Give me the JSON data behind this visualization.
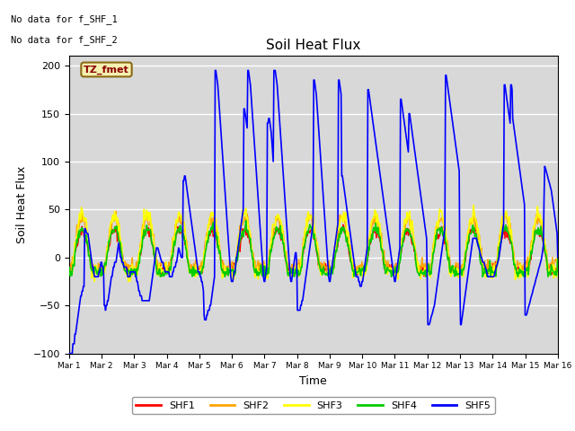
{
  "title": "Soil Heat Flux",
  "ylabel": "Soil Heat Flux",
  "xlabel": "Time",
  "ylim": [
    -100,
    210
  ],
  "xlim": [
    0,
    15
  ],
  "note1": "No data for f_SHF_1",
  "note2": "No data for f_SHF_2",
  "box_label": "TZ_fmet",
  "legend_entries": [
    "SHF1",
    "SHF2",
    "SHF3",
    "SHF4",
    "SHF5"
  ],
  "colors": {
    "SHF1": "#ff0000",
    "SHF2": "#ffa500",
    "SHF3": "#ffff00",
    "SHF4": "#00cc00",
    "SHF5": "#0000ff"
  },
  "plot_bg": "#d8d8d8",
  "fig_bg": "#ffffff",
  "xtick_labels": [
    "Mar 1",
    "Mar 2",
    "Mar 3",
    "Mar 4",
    "Mar 5",
    "Mar 6",
    "Mar 7",
    "Mar 8",
    "Mar 9",
    "Mar 10",
    "Mar 11",
    "Mar 12",
    "Mar 13",
    "Mar 14",
    "Mar 15",
    "Mar 16"
  ],
  "shf5_segments": [
    [
      -100,
      -100,
      -100,
      -100,
      -100,
      -100,
      -90,
      -90,
      -90,
      -80,
      -80,
      -75,
      -70,
      -65,
      -60,
      -55,
      -50,
      -45,
      -40,
      -40,
      -35,
      -35,
      -30,
      -30,
      30,
      30,
      28,
      25,
      25,
      25,
      20,
      15,
      10,
      5,
      0,
      -5,
      -10,
      -10,
      -15,
      -20,
      -20,
      -20,
      -20,
      -20,
      -20,
      -20,
      -15,
      -15,
      -10,
      -5
    ],
    [
      -5,
      -10,
      -10,
      -15,
      -50,
      -50,
      -55,
      -50,
      -50,
      -45,
      -45,
      -40,
      -35,
      -30,
      -25,
      -20,
      -20,
      -15,
      -10,
      -10,
      -5,
      -5,
      -5,
      0,
      5,
      10,
      15,
      10,
      5,
      0,
      0,
      -5,
      -5,
      -5,
      -10,
      -10,
      -10,
      -10,
      -10,
      -15,
      -20,
      -20,
      -20,
      -20,
      -15,
      -15,
      -15,
      -15,
      -15,
      -15
    ],
    [
      -15,
      -15,
      -20,
      -20,
      -25,
      -25,
      -30,
      -35,
      -35,
      -40,
      -40,
      -40,
      -45,
      -45,
      -45,
      -45,
      -45,
      -45,
      -45,
      -45,
      -45,
      -45,
      -45,
      -45,
      -40,
      -35,
      -30,
      -25,
      -20,
      -15,
      -10,
      -5,
      0,
      5,
      10,
      10,
      10,
      8,
      5,
      3,
      0,
      -2,
      -5,
      -5,
      -5,
      -10,
      -10,
      -15,
      -15,
      -15
    ],
    [
      -15,
      -15,
      -15,
      -15,
      -20,
      -20,
      -20,
      -20,
      -20,
      -15,
      -15,
      -10,
      -10,
      -10,
      -5,
      -5,
      0,
      5,
      10,
      8,
      5,
      3,
      0,
      0,
      0,
      80,
      80,
      85,
      85,
      80,
      75,
      70,
      65,
      60,
      55,
      50,
      45,
      40,
      35,
      30,
      25,
      20,
      15,
      10,
      5,
      0,
      -5,
      -10,
      -15,
      -15
    ],
    [
      -15,
      -20,
      -20,
      -25,
      -25,
      -30,
      -35,
      -60,
      -65,
      -65,
      -65,
      -60,
      -60,
      -55,
      -55,
      -55,
      -50,
      -50,
      -45,
      -40,
      -35,
      -30,
      -25,
      -20,
      195,
      195,
      190,
      185,
      180,
      170,
      160,
      150,
      140,
      130,
      120,
      110,
      100,
      90,
      80,
      70,
      60,
      50,
      40,
      30,
      20,
      10,
      0,
      -10,
      -20,
      -25
    ],
    [
      -25,
      -25,
      -20,
      -15,
      -15,
      -10,
      -5,
      0,
      5,
      10,
      15,
      20,
      25,
      30,
      35,
      40,
      45,
      50,
      155,
      155,
      150,
      145,
      140,
      135,
      195,
      195,
      190,
      185,
      180,
      170,
      160,
      150,
      140,
      130,
      120,
      110,
      100,
      90,
      80,
      70,
      60,
      50,
      40,
      30,
      20,
      10,
      0,
      -10,
      -20,
      -25
    ],
    [
      -25,
      -20,
      -15,
      -10,
      140,
      140,
      145,
      145,
      140,
      135,
      130,
      120,
      110,
      100,
      195,
      195,
      195,
      190,
      185,
      180,
      170,
      160,
      150,
      140,
      130,
      120,
      110,
      100,
      90,
      80,
      70,
      60,
      50,
      40,
      30,
      20,
      10,
      0,
      -10,
      -20,
      -25,
      -25,
      -20,
      -15,
      -10,
      -5,
      0,
      5,
      5,
      -5
    ],
    [
      -55,
      -55,
      -55,
      -55,
      -55,
      -50,
      -50,
      -45,
      -45,
      -40,
      -35,
      -30,
      -25,
      -20,
      -15,
      -10,
      -5,
      0,
      5,
      10,
      15,
      20,
      25,
      30,
      35,
      185,
      185,
      180,
      175,
      170,
      160,
      150,
      140,
      130,
      120,
      110,
      100,
      90,
      80,
      70,
      60,
      50,
      40,
      30,
      20,
      10,
      0,
      -10,
      -20,
      -25
    ],
    [
      -25,
      -20,
      -15,
      -10,
      -5,
      0,
      5,
      10,
      15,
      20,
      25,
      30,
      35,
      185,
      185,
      180,
      175,
      170,
      85,
      85,
      80,
      75,
      70,
      65,
      60,
      55,
      50,
      45,
      40,
      35,
      30,
      25,
      20,
      15,
      10,
      5,
      0,
      -5,
      -10,
      -15,
      -20,
      -20,
      -20,
      -20,
      -25,
      -25,
      -30,
      -30,
      -30,
      -25
    ],
    [
      -25,
      -20,
      -15,
      -10,
      -5,
      0,
      5,
      10,
      175,
      175,
      170,
      165,
      160,
      155,
      150,
      145,
      140,
      135,
      130,
      125,
      120,
      115,
      110,
      105,
      100,
      95,
      90,
      85,
      80,
      75,
      70,
      65,
      60,
      55,
      50,
      45,
      40,
      35,
      30,
      25,
      20,
      15,
      10,
      5,
      0,
      -5,
      -10,
      -15,
      -20,
      -25
    ],
    [
      -25,
      -20,
      -15,
      -10,
      -5,
      0,
      5,
      10,
      165,
      165,
      160,
      155,
      150,
      145,
      140,
      135,
      130,
      125,
      120,
      115,
      110,
      150,
      150,
      145,
      140,
      135,
      130,
      125,
      120,
      115,
      110,
      105,
      100,
      95,
      90,
      85,
      80,
      75,
      70,
      65,
      60,
      55,
      50,
      45,
      40,
      35,
      30,
      25,
      20,
      -25
    ],
    [
      -70,
      -70,
      -70,
      -68,
      -65,
      -62,
      -60,
      -58,
      -55,
      -52,
      -50,
      -45,
      -40,
      -35,
      -30,
      -25,
      -20,
      -15,
      -10,
      -5,
      0,
      5,
      10,
      15,
      20,
      25,
      30,
      190,
      190,
      185,
      180,
      175,
      170,
      165,
      160,
      155,
      150,
      145,
      140,
      135,
      130,
      125,
      120,
      115,
      110,
      105,
      100,
      95,
      90,
      -25
    ],
    [
      -70,
      -70,
      -65,
      -60,
      -55,
      -50,
      -45,
      -40,
      -35,
      -30,
      -25,
      -20,
      -15,
      -10,
      -5,
      0,
      5,
      10,
      15,
      20,
      20,
      20,
      20,
      20,
      20,
      18,
      15,
      12,
      10,
      8,
      5,
      2,
      0,
      -2,
      -5,
      -5,
      -5,
      -8,
      -10,
      -12,
      -15,
      -18,
      -20,
      -20,
      -20,
      -20,
      -20,
      -20,
      -20,
      -20
    ],
    [
      -20,
      -20,
      -18,
      -15,
      -12,
      -10,
      -8,
      -5,
      -3,
      0,
      5,
      10,
      15,
      20,
      25,
      30,
      35,
      180,
      180,
      175,
      170,
      165,
      160,
      155,
      150,
      145,
      140,
      180,
      180,
      175,
      145,
      140,
      135,
      130,
      125,
      120,
      115,
      110,
      105,
      100,
      95,
      90,
      85,
      80,
      75,
      70,
      65,
      60,
      55,
      -60
    ],
    [
      -60,
      -60,
      -58,
      -55,
      -52,
      -50,
      -48,
      -45,
      -42,
      -40,
      -38,
      -35,
      -32,
      -30,
      -28,
      -25,
      -22,
      -20,
      -18,
      -15,
      -12,
      -10,
      -8,
      -5,
      -3,
      0,
      5,
      10,
      15,
      95,
      95,
      92,
      90,
      88,
      85,
      82,
      80,
      78,
      75,
      72,
      70,
      65,
      60,
      55,
      50,
      45,
      40,
      35,
      30,
      25
    ]
  ]
}
